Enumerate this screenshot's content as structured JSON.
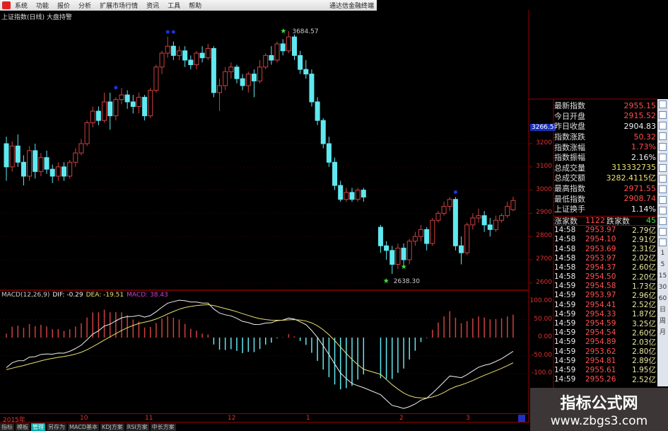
{
  "menu": {
    "items": [
      "系统",
      "功能",
      "报价",
      "分析",
      "扩展市场行情",
      "资讯",
      "工具",
      "帮助"
    ],
    "brand": "通达信金融终端"
  },
  "chart_title": "上证指数(日线) 大盘持警",
  "price_axis": {
    "labels": [
      "3200",
      "3100",
      "3000",
      "2900",
      "2800",
      "2700",
      "2600"
    ],
    "values": [
      3200,
      3100,
      3000,
      2900,
      2800,
      2700,
      2600
    ],
    "cursor": "3266.5"
  },
  "annotations": {
    "high": "3684.57",
    "low": "2638.30"
  },
  "macd": {
    "title": "MACD(12,26,9)",
    "dif_label": "DIF: -0.29",
    "dea_label": "DEA: -19.51",
    "macd_label": "MACD: 38.43",
    "axis": [
      "100.00",
      "50.00",
      "0.00",
      "-50.00",
      "-100.0"
    ],
    "axis_values": [
      100,
      50,
      0,
      -50,
      -100
    ]
  },
  "colors": {
    "up": "#d04040",
    "down": "#60e8f0",
    "dif": "#f0f0f0",
    "dea": "#e8e070",
    "grid": "#900000"
  },
  "dates": [
    "2015年",
    "10",
    "11",
    "12",
    "1",
    "2",
    "3"
  ],
  "tabs": [
    "指标",
    "模板",
    "管理",
    "另存为",
    "MACD基本",
    "KDJ方案",
    "RSI方案",
    "中长方案"
  ],
  "active_tab": 2,
  "quote": [
    {
      "k": "最新指数",
      "v": "2955.15",
      "c": "red"
    },
    {
      "k": "今日开盘",
      "v": "2915.52",
      "c": "red"
    },
    {
      "k": "昨日收盘",
      "v": "2904.83",
      "c": "white"
    },
    {
      "k": "指数涨跌",
      "v": "50.32",
      "c": "red"
    },
    {
      "k": "指数涨幅",
      "v": "1.73%",
      "c": "red"
    },
    {
      "k": "指数振幅",
      "v": "2.16%",
      "c": "white"
    },
    {
      "k": "总成交量",
      "v": "313332735",
      "c": "yellow"
    },
    {
      "k": "总成交额",
      "v": "3282.4115亿",
      "c": "yellow"
    },
    {
      "k": "最高指数",
      "v": "2971.55",
      "c": "red"
    },
    {
      "k": "最低指数",
      "v": "2908.74",
      "c": "red"
    },
    {
      "k": "上证换手",
      "v": "1.14%",
      "c": "white"
    }
  ],
  "advance": {
    "up_label": "涨家数",
    "up": "1122",
    "down_label": "跌家数",
    "down": "45"
  },
  "ticks": [
    [
      "14:58",
      "2953.97",
      "2.79亿"
    ],
    [
      "14:58",
      "2954.10",
      "2.91亿"
    ],
    [
      "14:58",
      "2953.69",
      "2.31亿"
    ],
    [
      "14:58",
      "2953.97",
      "2.02亿"
    ],
    [
      "14:58",
      "2954.37",
      "2.60亿"
    ],
    [
      "14:58",
      "2954.50",
      "2.20亿"
    ],
    [
      "14:59",
      "2954.58",
      "1.73亿"
    ],
    [
      "14:59",
      "2953.97",
      "2.96亿"
    ],
    [
      "14:59",
      "2954.41",
      "2.52亿"
    ],
    [
      "14:59",
      "2954.33",
      "1.87亿"
    ],
    [
      "14:59",
      "2954.59",
      "3.25亿"
    ],
    [
      "14:59",
      "2954.54",
      "2.60亿"
    ],
    [
      "14:59",
      "2954.89",
      "2.03亿"
    ],
    [
      "14:59",
      "2953.62",
      "2.80亿"
    ],
    [
      "14:59",
      "2954.81",
      "2.89亿"
    ],
    [
      "14:59",
      "2955.61",
      "1.95亿"
    ],
    [
      "14:59",
      "2955.26",
      "2.52亿"
    ]
  ],
  "periods": [
    "1",
    "5",
    "15",
    "30",
    "60",
    "日",
    "周",
    "月"
  ],
  "watermark": {
    "name": "指标公式网",
    "url": "www.zbgs3.com"
  },
  "chart_data": {
    "type": "candlestick",
    "fields": [
      "open",
      "close",
      "high",
      "low"
    ],
    "gap_after_index": 62,
    "candles": [
      [
        3200,
        3100,
        3230,
        3040
      ],
      [
        3100,
        3190,
        3210,
        3080
      ],
      [
        3190,
        3120,
        3240,
        3100
      ],
      [
        3120,
        3060,
        3150,
        3020
      ],
      [
        3060,
        3170,
        3190,
        3040
      ],
      [
        3170,
        3080,
        3200,
        3050
      ],
      [
        3080,
        3140,
        3160,
        3060
      ],
      [
        3140,
        3090,
        3170,
        3070
      ],
      [
        3090,
        3060,
        3110,
        3030
      ],
      [
        3060,
        3100,
        3120,
        3040
      ],
      [
        3100,
        3060,
        3120,
        3040
      ],
      [
        3060,
        3120,
        3130,
        3050
      ],
      [
        3120,
        3160,
        3180,
        3100
      ],
      [
        3160,
        3200,
        3220,
        3150
      ],
      [
        3200,
        3290,
        3300,
        3190
      ],
      [
        3290,
        3340,
        3360,
        3270
      ],
      [
        3340,
        3300,
        3360,
        3280
      ],
      [
        3300,
        3380,
        3420,
        3290
      ],
      [
        3380,
        3320,
        3420,
        3260
      ],
      [
        3320,
        3390,
        3400,
        3300
      ],
      [
        3390,
        3410,
        3440,
        3370
      ],
      [
        3410,
        3380,
        3430,
        3350
      ],
      [
        3380,
        3360,
        3410,
        3330
      ],
      [
        3360,
        3400,
        3420,
        3330
      ],
      [
        3400,
        3320,
        3410,
        3300
      ],
      [
        3320,
        3430,
        3440,
        3310
      ],
      [
        3430,
        3530,
        3540,
        3420
      ],
      [
        3530,
        3590,
        3600,
        3500
      ],
      [
        3590,
        3620,
        3660,
        3570
      ],
      [
        3620,
        3580,
        3640,
        3560
      ],
      [
        3580,
        3600,
        3620,
        3560
      ],
      [
        3600,
        3560,
        3620,
        3530
      ],
      [
        3560,
        3540,
        3580,
        3520
      ],
      [
        3540,
        3590,
        3600,
        3520
      ],
      [
        3590,
        3570,
        3620,
        3550
      ],
      [
        3570,
        3610,
        3630,
        3560
      ],
      [
        3610,
        3420,
        3620,
        3400
      ],
      [
        3420,
        3450,
        3480,
        3340
      ],
      [
        3450,
        3510,
        3530,
        3430
      ],
      [
        3510,
        3530,
        3550,
        3480
      ],
      [
        3530,
        3480,
        3540,
        3460
      ],
      [
        3480,
        3450,
        3500,
        3430
      ],
      [
        3450,
        3500,
        3510,
        3420
      ],
      [
        3500,
        3470,
        3520,
        3400
      ],
      [
        3470,
        3530,
        3560,
        3460
      ],
      [
        3530,
        3580,
        3590,
        3520
      ],
      [
        3580,
        3560,
        3620,
        3540
      ],
      [
        3560,
        3630,
        3640,
        3550
      ],
      [
        3630,
        3600,
        3650,
        3580
      ],
      [
        3600,
        3660,
        3684.57,
        3590
      ],
      [
        3660,
        3580,
        3670,
        3560
      ],
      [
        3580,
        3520,
        3600,
        3500
      ],
      [
        3520,
        3500,
        3560,
        3480
      ],
      [
        3500,
        3380,
        3520,
        3360
      ],
      [
        3380,
        3300,
        3400,
        3280
      ],
      [
        3300,
        3200,
        3310,
        3180
      ],
      [
        3200,
        3120,
        3230,
        3100
      ],
      [
        3120,
        3020,
        3140,
        3000
      ],
      [
        3020,
        2960,
        3040,
        2950
      ],
      [
        2960,
        2990,
        3010,
        2950
      ],
      [
        2990,
        2960,
        3010,
        2950
      ],
      [
        2960,
        3000,
        3010,
        2950
      ],
      [
        3000,
        2970,
        3010,
        2950
      ],
      [
        2840,
        2760,
        2850,
        2730
      ],
      [
        2760,
        2740,
        2780,
        2700
      ],
      [
        2740,
        2680,
        2760,
        2638.3
      ],
      [
        2680,
        2750,
        2770,
        2660
      ],
      [
        2750,
        2700,
        2770,
        2670
      ],
      [
        2700,
        2780,
        2790,
        2680
      ],
      [
        2780,
        2800,
        2820,
        2760
      ],
      [
        2800,
        2830,
        2850,
        2780
      ],
      [
        2830,
        2770,
        2840,
        2740
      ],
      [
        2770,
        2870,
        2880,
        2760
      ],
      [
        2870,
        2900,
        2910,
        2860
      ],
      [
        2900,
        2930,
        2950,
        2890
      ],
      [
        2930,
        2960,
        2970,
        2910
      ],
      [
        2960,
        2760,
        2970,
        2740
      ],
      [
        2760,
        2730,
        2800,
        2680
      ],
      [
        2730,
        2850,
        2860,
        2720
      ],
      [
        2850,
        2880,
        2900,
        2830
      ],
      [
        2880,
        2890,
        2920,
        2860
      ],
      [
        2890,
        2850,
        2910,
        2820
      ],
      [
        2850,
        2830,
        2880,
        2800
      ],
      [
        2830,
        2870,
        2890,
        2820
      ],
      [
        2870,
        2890,
        2900,
        2860
      ],
      [
        2890,
        2930,
        2950,
        2880
      ],
      [
        2915.52,
        2955.15,
        2971.55,
        2908.74
      ]
    ]
  }
}
